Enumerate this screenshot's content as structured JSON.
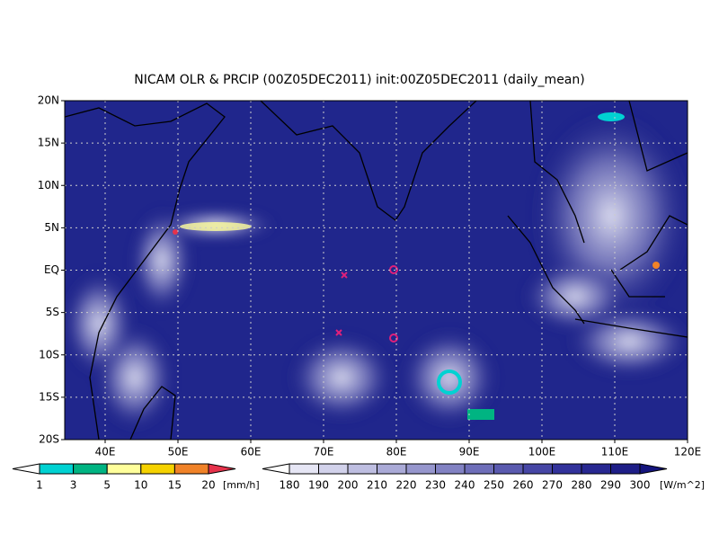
{
  "title": "NICAM OLR & PRCIP (00Z05DEC2011) init:00Z05DEC2011 (daily_mean)",
  "map": {
    "lat_labels": [
      "20N",
      "15N",
      "10N",
      "5N",
      "EQ",
      "5S",
      "10S",
      "15S",
      "20S"
    ],
    "lon_labels": [
      "40E",
      "50E",
      "60E",
      "70E",
      "80E",
      "90E",
      "100E",
      "110E",
      "120E"
    ]
  },
  "precip_scale": {
    "labels": [
      "1",
      "3",
      "5",
      "10",
      "15",
      "20"
    ],
    "unit": "[mm/h]",
    "colors": [
      "#ffffff",
      "#00d2d2",
      "#00b482",
      "#ffff9b",
      "#f5d200",
      "#f08228",
      "#e6324b"
    ]
  },
  "olr_scale": {
    "labels": [
      "180",
      "190",
      "200",
      "210",
      "220",
      "230",
      "240",
      "250",
      "260",
      "270",
      "280",
      "290",
      "300"
    ],
    "unit": "[W/m^2]",
    "colors": [
      "#ffffff",
      "#e6e6f5",
      "#d2d2eb",
      "#bebee1",
      "#aaaad7",
      "#9696cd",
      "#8282c3",
      "#6e6eb9",
      "#5a5aaf",
      "#4646a5",
      "#32329b",
      "#282891",
      "#1e1e87",
      "#14147d"
    ]
  }
}
